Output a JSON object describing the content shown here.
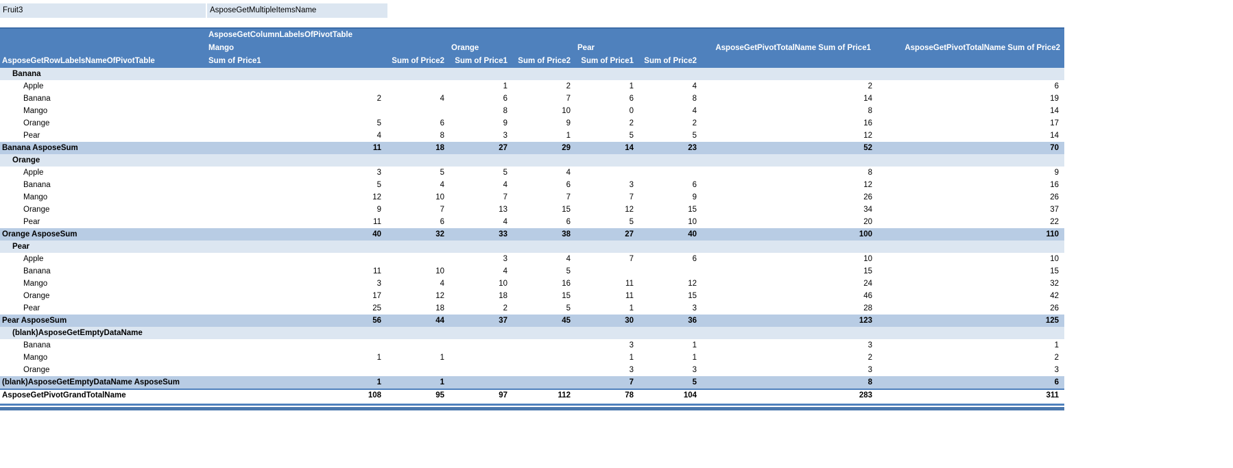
{
  "report_filter": {
    "field_label": "Fruit3",
    "value_label": "AsposeGetMultipleItemsName"
  },
  "pivot_header": {
    "column_labels_title": "AsposeGetColumnLabelsOfPivotTable",
    "row_labels_title": "AsposeGetRowLabelsNameOfPivotTable",
    "col_groups": [
      {
        "label": "Mango"
      },
      {
        "label": "Orange"
      },
      {
        "label": "Pear"
      }
    ],
    "grand_total_col1_label": "AsposeGetPivotTotalName Sum of Price1",
    "grand_total_col2_label": "AsposeGetPivotTotalName Sum of Price2",
    "value_headers": [
      "Sum of Price1",
      "Sum of Price2",
      "Sum of Price1",
      "Sum of Price2",
      "Sum of Price1",
      "Sum of Price2"
    ]
  },
  "columns": [
    "Mango Sum of Price1",
    "Mango Sum of Price2",
    "Orange Sum of Price1",
    "Orange Sum of Price2",
    "Pear Sum of Price1",
    "Pear Sum of Price2",
    "AsposeGetPivotTotalName Sum of Price1",
    "AsposeGetPivotTotalName Sum of Price2"
  ],
  "rows": [
    {
      "type": "group",
      "label": "Banana",
      "values": []
    },
    {
      "type": "item",
      "label": "Apple",
      "values": [
        "",
        "",
        "1",
        "2",
        "1",
        "4",
        "2",
        "6"
      ]
    },
    {
      "type": "item",
      "label": "Banana",
      "values": [
        "2",
        "4",
        "6",
        "7",
        "6",
        "8",
        "14",
        "19"
      ]
    },
    {
      "type": "item",
      "label": "Mango",
      "values": [
        "",
        "",
        "8",
        "10",
        "0",
        "4",
        "8",
        "14"
      ]
    },
    {
      "type": "item",
      "label": "Orange",
      "values": [
        "5",
        "6",
        "9",
        "9",
        "2",
        "2",
        "16",
        "17"
      ]
    },
    {
      "type": "item",
      "label": "Pear",
      "values": [
        "4",
        "8",
        "3",
        "1",
        "5",
        "5",
        "12",
        "14"
      ]
    },
    {
      "type": "subtotal",
      "label": "Banana AsposeSum",
      "values": [
        "11",
        "18",
        "27",
        "29",
        "14",
        "23",
        "52",
        "70"
      ]
    },
    {
      "type": "group",
      "label": "Orange",
      "values": []
    },
    {
      "type": "item",
      "label": "Apple",
      "values": [
        "3",
        "5",
        "5",
        "4",
        "",
        "",
        "8",
        "9"
      ]
    },
    {
      "type": "item",
      "label": "Banana",
      "values": [
        "5",
        "4",
        "4",
        "6",
        "3",
        "6",
        "12",
        "16"
      ]
    },
    {
      "type": "item",
      "label": "Mango",
      "values": [
        "12",
        "10",
        "7",
        "7",
        "7",
        "9",
        "26",
        "26"
      ]
    },
    {
      "type": "item",
      "label": "Orange",
      "values": [
        "9",
        "7",
        "13",
        "15",
        "12",
        "15",
        "34",
        "37"
      ]
    },
    {
      "type": "item",
      "label": "Pear",
      "values": [
        "11",
        "6",
        "4",
        "6",
        "5",
        "10",
        "20",
        "22"
      ]
    },
    {
      "type": "subtotal",
      "label": "Orange AsposeSum",
      "values": [
        "40",
        "32",
        "33",
        "38",
        "27",
        "40",
        "100",
        "110"
      ]
    },
    {
      "type": "group",
      "label": "Pear",
      "values": []
    },
    {
      "type": "item",
      "label": "Apple",
      "values": [
        "",
        "",
        "3",
        "4",
        "7",
        "6",
        "10",
        "10"
      ]
    },
    {
      "type": "item",
      "label": "Banana",
      "values": [
        "11",
        "10",
        "4",
        "5",
        "",
        "",
        "15",
        "15"
      ]
    },
    {
      "type": "item",
      "label": "Mango",
      "values": [
        "3",
        "4",
        "10",
        "16",
        "11",
        "12",
        "24",
        "32"
      ]
    },
    {
      "type": "item",
      "label": "Orange",
      "values": [
        "17",
        "12",
        "18",
        "15",
        "11",
        "15",
        "46",
        "42"
      ]
    },
    {
      "type": "item",
      "label": "Pear",
      "values": [
        "25",
        "18",
        "2",
        "5",
        "1",
        "3",
        "28",
        "26"
      ]
    },
    {
      "type": "subtotal",
      "label": "Pear AsposeSum",
      "values": [
        "56",
        "44",
        "37",
        "45",
        "30",
        "36",
        "123",
        "125"
      ]
    },
    {
      "type": "group",
      "label": "(blank)AsposeGetEmptyDataName",
      "values": []
    },
    {
      "type": "item",
      "label": "Banana",
      "values": [
        "",
        "",
        "",
        "",
        "3",
        "1",
        "3",
        "1"
      ]
    },
    {
      "type": "item",
      "label": "Mango",
      "values": [
        "1",
        "1",
        "",
        "",
        "1",
        "1",
        "2",
        "2"
      ]
    },
    {
      "type": "item",
      "label": "Orange",
      "values": [
        "",
        "",
        "",
        "",
        "3",
        "3",
        "3",
        "3"
      ]
    },
    {
      "type": "subtotal",
      "label": "(blank)AsposeGetEmptyDataName AsposeSum",
      "values": [
        "1",
        "1",
        "",
        "",
        "7",
        "5",
        "8",
        "6"
      ]
    },
    {
      "type": "grandtotal",
      "label": "AsposeGetPivotGrandTotalName",
      "values": [
        "108",
        "95",
        "97",
        "112",
        "78",
        "104",
        "283",
        "311"
      ]
    }
  ],
  "colors": {
    "header_bg": "#4F81BD",
    "header_text": "#FFFFFF",
    "subtotal_row_bg": "#B8CCE4",
    "group_row_bg": "#DCE6F1",
    "filter_cell_bg": "#DCE6F1",
    "body_text": "#000000",
    "total_border": "#4F81BD"
  }
}
